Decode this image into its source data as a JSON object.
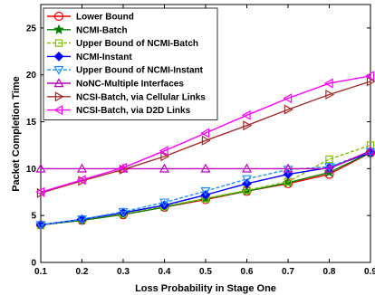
{
  "chart_data": {
    "type": "line",
    "xlabel": "Loss Probability in Stage One",
    "ylabel": "Packet Completion Time",
    "xlim": [
      0.1,
      0.9
    ],
    "ylim": [
      0,
      27.5
    ],
    "x_ticks": [
      0.1,
      0.2,
      0.3,
      0.4,
      0.5,
      0.6,
      0.7,
      0.8,
      0.9
    ],
    "x_tick_labels": [
      "0.1",
      "0.2",
      "0.3",
      "0.4",
      "0.5",
      "0.6",
      "0.7",
      "0.8",
      "0.9"
    ],
    "y_ticks": [
      0,
      5,
      10,
      15,
      20,
      25
    ],
    "y_tick_labels": [
      "0",
      "5",
      "10",
      "15",
      "20",
      "25"
    ],
    "grid": false,
    "legend_position": "top-left",
    "x": [
      0.1,
      0.2,
      0.3,
      0.4,
      0.5,
      0.6,
      0.7,
      0.8,
      0.9
    ],
    "series": [
      {
        "name": "Lower Bound",
        "color": "#ff0000",
        "marker": "circle",
        "dash": "none",
        "values": [
          4.0,
          4.5,
          5.1,
          5.9,
          6.7,
          7.6,
          8.4,
          9.4,
          11.7
        ]
      },
      {
        "name": "NCMI-Batch",
        "color": "#007f00",
        "marker": "star",
        "dash": "none",
        "values": [
          4.0,
          4.5,
          5.1,
          5.9,
          6.8,
          7.6,
          8.5,
          9.6,
          11.7
        ]
      },
      {
        "name": "Upper Bound of NCMI-Batch",
        "color": "#7fbf00",
        "marker": "square",
        "dash": "dash",
        "values": [
          4.0,
          4.6,
          5.2,
          6.0,
          6.8,
          7.7,
          8.6,
          11.0,
          12.5
        ]
      },
      {
        "name": "NCMI-Instant",
        "color": "#0000ff",
        "marker": "diamond",
        "dash": "none",
        "values": [
          4.0,
          4.6,
          5.3,
          6.1,
          7.2,
          8.4,
          9.4,
          10.1,
          11.7
        ]
      },
      {
        "name": "Upper Bound of NCMI-Instant",
        "color": "#1e90ff",
        "marker": "triangle-down",
        "dash": "dash",
        "values": [
          4.0,
          4.6,
          5.4,
          6.4,
          7.6,
          8.9,
          9.9,
          10.2,
          11.8
        ]
      },
      {
        "name": "NoNC-Multiple Interfaces",
        "color": "#bf00bf",
        "marker": "triangle-up",
        "dash": "none",
        "values": [
          10.0,
          10.0,
          10.0,
          10.0,
          10.0,
          10.0,
          10.0,
          10.0,
          11.9
        ]
      },
      {
        "name": "NCSI-Batch, via Cellular Links",
        "color": "#a52a2a",
        "marker": "triangle-right",
        "dash": "none",
        "values": [
          7.4,
          8.7,
          9.9,
          11.3,
          13.0,
          14.6,
          16.3,
          17.9,
          19.3
        ]
      },
      {
        "name": "NCSI-Batch, via D2D Links",
        "color": "#ff00ff",
        "marker": "triangle-left",
        "dash": "none",
        "values": [
          7.5,
          8.8,
          10.1,
          11.9,
          13.8,
          15.7,
          17.5,
          19.1,
          19.9
        ]
      }
    ]
  }
}
